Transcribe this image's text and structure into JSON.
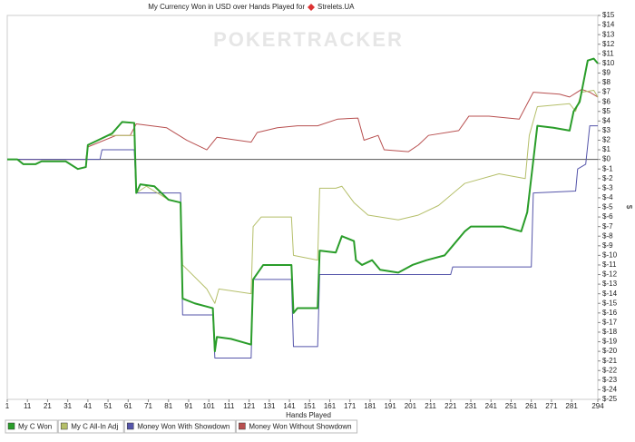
{
  "chart_data": {
    "type": "line",
    "title": "My Currency Won in USD over Hands Played for",
    "player": "Strelets.UA",
    "watermark": "POKERTRACKER",
    "x_label": "Hands Played",
    "y_label": "$",
    "xlim": [
      1,
      294
    ],
    "xticks": [
      1,
      11,
      21,
      31,
      41,
      51,
      61,
      71,
      81,
      91,
      101,
      111,
      121,
      131,
      141,
      151,
      161,
      171,
      181,
      191,
      201,
      211,
      221,
      231,
      241,
      251,
      261,
      271,
      281,
      294
    ],
    "ylim": [
      -25,
      15
    ],
    "yticks": [
      {
        "value": 15,
        "label": "$15"
      },
      {
        "value": 14,
        "label": "$14"
      },
      {
        "value": 13,
        "label": "$13"
      },
      {
        "value": 12,
        "label": "$12"
      },
      {
        "value": 11,
        "label": "$11"
      },
      {
        "value": 10,
        "label": "$10"
      },
      {
        "value": 9,
        "label": "$9"
      },
      {
        "value": 8,
        "label": "$8"
      },
      {
        "value": 7,
        "label": "$7"
      },
      {
        "value": 6,
        "label": "$6"
      },
      {
        "value": 5,
        "label": "$5"
      },
      {
        "value": 4,
        "label": "$4"
      },
      {
        "value": 3,
        "label": "$3"
      },
      {
        "value": 2,
        "label": "$2"
      },
      {
        "value": 1,
        "label": "$1"
      },
      {
        "value": 0,
        "label": "$0"
      },
      {
        "value": -1,
        "label": "$-1"
      },
      {
        "value": -2,
        "label": "$-2"
      },
      {
        "value": -3,
        "label": "$-3"
      },
      {
        "value": -4,
        "label": "$-4"
      },
      {
        "value": -5,
        "label": "$-5"
      },
      {
        "value": -6,
        "label": "$-6"
      },
      {
        "value": -7,
        "label": "$-7"
      },
      {
        "value": -8,
        "label": "$-8"
      },
      {
        "value": -9,
        "label": "$-9"
      },
      {
        "value": -10,
        "label": "$-10"
      },
      {
        "value": -11,
        "label": "$-11"
      },
      {
        "value": -12,
        "label": "$-12"
      },
      {
        "value": -13,
        "label": "$-13"
      },
      {
        "value": -14,
        "label": "$-14"
      },
      {
        "value": -15,
        "label": "$-15"
      },
      {
        "value": -16,
        "label": "$-16"
      },
      {
        "value": -17,
        "label": "$-17"
      },
      {
        "value": -18,
        "label": "$-18"
      },
      {
        "value": -19,
        "label": "$-19"
      },
      {
        "value": -20,
        "label": "$-20"
      },
      {
        "value": -21,
        "label": "$-21"
      },
      {
        "value": -22,
        "label": "$-22"
      },
      {
        "value": -23,
        "label": "$-23"
      },
      {
        "value": -24,
        "label": "$-24"
      },
      {
        "value": -25,
        "label": "$-25"
      }
    ],
    "series": [
      {
        "name": "Money Won Without Showdown",
        "color": "#b85050",
        "x": [
          1,
          40,
          41,
          55,
          62,
          65,
          80,
          90,
          100,
          105,
          122,
          125,
          135,
          145,
          155,
          165,
          175,
          178,
          185,
          188,
          200,
          205,
          210,
          225,
          230,
          240,
          255,
          262,
          275,
          280,
          286,
          290,
          294
        ],
        "values": [
          0,
          0,
          1.3,
          2.5,
          2.5,
          3.7,
          3.3,
          2,
          1,
          2.3,
          1.8,
          2.8,
          3.3,
          3.5,
          3.5,
          4.2,
          4.3,
          2,
          2.5,
          1,
          0.8,
          1.5,
          2.5,
          3,
          4.5,
          4.5,
          4.2,
          7,
          6.8,
          6.5,
          7.3,
          7,
          6.5
        ]
      },
      {
        "name": "Money Won With Showdown",
        "color": "#5555aa",
        "x": [
          1,
          47,
          48,
          64,
          65,
          87,
          88,
          103,
          104,
          122,
          123,
          142,
          143,
          155,
          156,
          221,
          222,
          261,
          262,
          283,
          284,
          288,
          290,
          294
        ],
        "values": [
          0,
          0,
          1,
          1,
          -3.5,
          -3.5,
          -16.2,
          -16.2,
          -20.7,
          -20.7,
          -12.5,
          -12.5,
          -19.5,
          -19.5,
          -12,
          -12,
          -11.2,
          -11.2,
          -3.5,
          -3.3,
          -1,
          -0.5,
          3.5,
          3.5
        ]
      },
      {
        "name": "My C All-In Adj",
        "color": "#b5bf6a",
        "x": [
          1,
          6,
          9,
          15,
          18,
          30,
          36,
          40,
          41,
          51,
          58,
          64,
          65,
          70,
          81,
          87,
          88,
          100,
          104,
          106,
          122,
          123,
          127,
          142,
          143,
          155,
          156,
          164,
          167,
          173,
          180,
          195,
          205,
          215,
          228,
          245,
          258,
          260,
          264,
          280,
          283,
          286,
          292,
          294
        ],
        "values": [
          0,
          0,
          -0.5,
          -0.5,
          -0.2,
          -0.2,
          -1,
          -0.8,
          1.5,
          2.5,
          2.5,
          2.5,
          -3.5,
          -2.8,
          -4.2,
          -4.5,
          -11,
          -13.5,
          -15,
          -13.5,
          -14,
          -7,
          -6,
          -6,
          -10,
          -10.5,
          -3,
          -3,
          -2.8,
          -4.5,
          -5.8,
          -6.3,
          -5.8,
          -4.8,
          -2.5,
          -1.5,
          -2,
          2.5,
          5.5,
          5.8,
          5,
          7,
          7.2,
          6.5
        ]
      },
      {
        "name": "My C Won",
        "color": "#2a9d2a",
        "x": [
          1,
          6,
          9,
          15,
          18,
          30,
          36,
          40,
          41,
          46,
          51,
          53,
          58,
          64,
          65,
          67,
          74,
          81,
          87,
          88,
          94,
          103,
          104,
          105,
          112,
          122,
          123,
          128,
          141,
          142,
          143,
          145,
          155,
          156,
          164,
          167,
          173,
          174,
          177,
          182,
          186,
          195,
          202,
          209,
          218,
          222,
          228,
          231,
          247,
          256,
          259,
          264,
          272,
          280,
          282,
          285,
          289,
          292,
          294
        ],
        "values": [
          0,
          0,
          -0.5,
          -0.5,
          -0.2,
          -0.2,
          -1,
          -0.8,
          1.5,
          2,
          2.5,
          2.7,
          3.9,
          3.8,
          -3.5,
          -2.6,
          -2.8,
          -4.2,
          -4.5,
          -14.5,
          -15,
          -15.5,
          -20,
          -18.5,
          -18.7,
          -19.3,
          -12.5,
          -11,
          -11,
          -11,
          -16,
          -15.5,
          -15.5,
          -9.5,
          -9.7,
          -8,
          -8.5,
          -10.5,
          -11,
          -10.5,
          -11.5,
          -11.8,
          -11,
          -10.5,
          -10,
          -9,
          -7.5,
          -7,
          -7,
          -7.5,
          -5.5,
          3.5,
          3.3,
          3,
          5,
          6,
          10.3,
          10.5,
          10
        ]
      }
    ]
  }
}
